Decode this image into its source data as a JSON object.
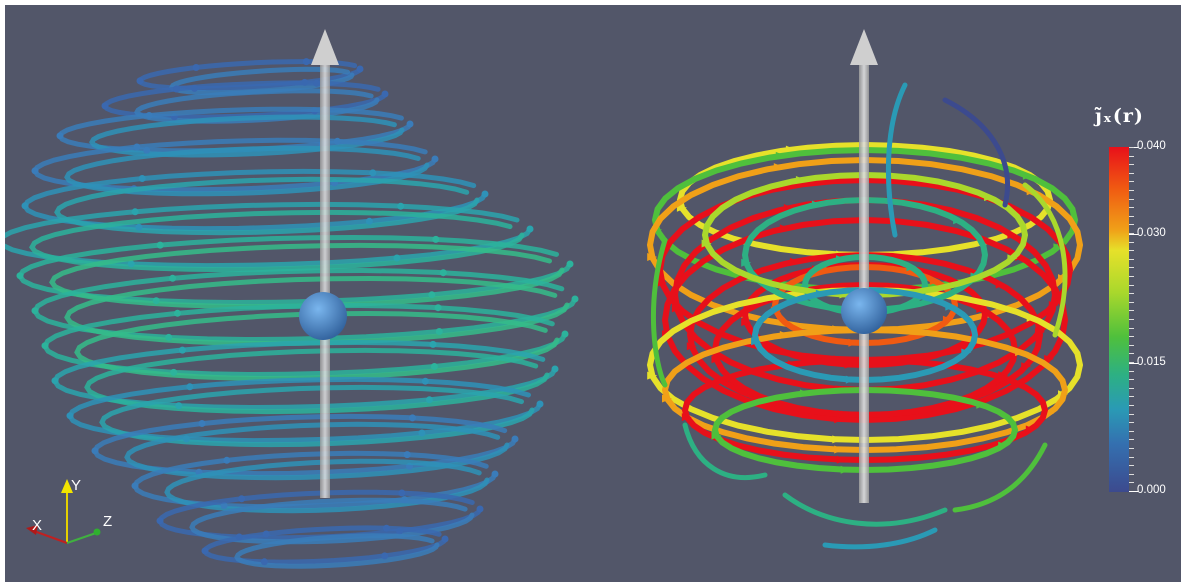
{
  "colorbar": {
    "title": "j̃ₓ(r)",
    "labels": [
      "0.040",
      "0.030",
      "0.015",
      "0.000"
    ],
    "colors": [
      "#e8101a",
      "#f0a018",
      "#e6e12a",
      "#4fc03c",
      "#2a9ab5",
      "#3c4a8e"
    ]
  },
  "orientation_axes": {
    "x_label": "X",
    "y_label": "Y",
    "z_label": "Z"
  },
  "colors": {
    "background": "#525669",
    "arrow": "#c8c8c8",
    "sphere": "#4a86c8"
  }
}
